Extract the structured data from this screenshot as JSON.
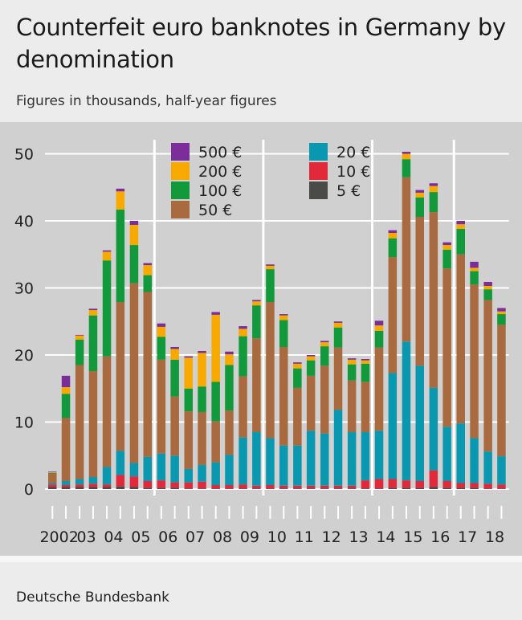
{
  "title": "Counterfeit euro banknotes in Germany by denomination",
  "subtitle": "Figures in thousands, half-year figures",
  "source": "Deutsche Bundesbank",
  "chart_data": {
    "type": "bar",
    "stacked": true,
    "ylim": [
      0,
      52
    ],
    "yticks": [
      0,
      10,
      20,
      30,
      40,
      50
    ],
    "year_labels": [
      "2002",
      "03",
      "04",
      "05",
      "06",
      "07",
      "08",
      "09",
      "10",
      "11",
      "12",
      "13",
      "14",
      "15",
      "16",
      "17",
      "18"
    ],
    "categories": [
      "2002 H1",
      "2002 H2",
      "2003 H1",
      "2003 H2",
      "2004 H1",
      "2004 H2",
      "2005 H1",
      "2005 H2",
      "2006 H1",
      "2006 H2",
      "2007 H1",
      "2007 H2",
      "2008 H1",
      "2008 H2",
      "2009 H1",
      "2009 H2",
      "2010 H1",
      "2010 H2",
      "2011 H1",
      "2011 H2",
      "2012 H1",
      "2012 H2",
      "2013 H1",
      "2013 H2",
      "2014 H1",
      "2014 H2",
      "2015 H1",
      "2015 H2",
      "2016 H1",
      "2016 H2",
      "2017 H1",
      "2017 H2",
      "2018 H1",
      "2018 H2"
    ],
    "series": [
      {
        "name": "5 €",
        "color": "#4a4a48",
        "values": [
          0.3,
          0.3,
          0.3,
          0.3,
          0.3,
          0.4,
          0.3,
          0.2,
          0.2,
          0.2,
          0.1,
          0.1,
          0.1,
          0.1,
          0.1,
          0.1,
          0.1,
          0.1,
          0.1,
          0.1,
          0.1,
          0.1,
          0.1,
          0.1,
          0.1,
          0.2,
          0.2,
          0.2,
          0.3,
          0.2,
          0.2,
          0.2,
          0.1,
          0.1
        ]
      },
      {
        "name": "10 €",
        "color": "#e2293b",
        "values": [
          0.4,
          0.3,
          0.4,
          0.5,
          0.4,
          1.7,
          1.6,
          1.0,
          1.1,
          0.8,
          0.9,
          1.0,
          0.5,
          0.5,
          0.6,
          0.4,
          0.5,
          0.4,
          0.4,
          0.4,
          0.4,
          0.4,
          0.4,
          1.2,
          1.4,
          1.3,
          1.1,
          1.0,
          2.5,
          1.0,
          0.7,
          0.7,
          0.7,
          0.6
        ]
      },
      {
        "name": "20 €",
        "color": "#0a98b0",
        "values": [
          0.2,
          0.6,
          0.8,
          1.0,
          2.6,
          3.6,
          2.0,
          3.6,
          4.0,
          4.0,
          2.0,
          2.5,
          3.4,
          4.5,
          7.0,
          8.0,
          7.0,
          6.0,
          6.0,
          8.2,
          7.8,
          11.3,
          8.0,
          7.2,
          7.2,
          15.8,
          20.7,
          17.2,
          12.3,
          8.1,
          8.9,
          6.7,
          4.8,
          4.2
        ]
      },
      {
        "name": "50 €",
        "color": "#a86a3e",
        "values": [
          1.4,
          9.4,
          17.0,
          15.8,
          16.5,
          22.2,
          26.8,
          24.6,
          14.0,
          8.8,
          8.6,
          7.9,
          6.1,
          6.6,
          9.1,
          14.0,
          20.3,
          14.7,
          8.6,
          8.2,
          10.1,
          9.3,
          7.7,
          7.5,
          12.4,
          17.3,
          24.5,
          22.2,
          26.2,
          23.6,
          25.2,
          22.9,
          22.6,
          19.6
        ]
      },
      {
        "name": "100 €",
        "color": "#12993b",
        "values": [
          0.1,
          3.6,
          3.8,
          8.3,
          14.3,
          13.8,
          5.7,
          2.5,
          3.4,
          5.5,
          3.4,
          3.8,
          5.9,
          6.8,
          6.0,
          4.9,
          4.9,
          4.0,
          2.9,
          2.3,
          2.9,
          3.0,
          2.4,
          2.7,
          2.5,
          2.8,
          2.7,
          2.9,
          3.0,
          2.8,
          3.8,
          2.0,
          1.6,
          1.6
        ]
      },
      {
        "name": "200 €",
        "color": "#f8a900",
        "values": [
          0.1,
          1.0,
          0.6,
          0.8,
          1.3,
          2.7,
          3.0,
          1.5,
          1.5,
          1.6,
          4.6,
          5.0,
          10.0,
          1.6,
          1.1,
          0.6,
          0.5,
          0.7,
          0.7,
          0.6,
          0.6,
          0.7,
          0.7,
          0.5,
          0.8,
          0.8,
          0.8,
          0.7,
          0.9,
          0.7,
          0.7,
          0.5,
          0.5,
          0.4
        ]
      },
      {
        "name": "500 €",
        "color": "#7b2d9a",
        "values": [
          0.1,
          1.7,
          0.1,
          0.2,
          0.2,
          0.4,
          0.6,
          0.3,
          0.5,
          0.3,
          0.2,
          0.3,
          0.4,
          0.4,
          0.4,
          0.2,
          0.2,
          0.2,
          0.2,
          0.2,
          0.2,
          0.2,
          0.2,
          0.2,
          0.7,
          0.4,
          0.3,
          0.4,
          0.4,
          0.4,
          0.5,
          0.9,
          0.6,
          0.5
        ]
      }
    ],
    "legend_columns": [
      [
        "500 €",
        "200 €",
        "100 €",
        "50 €"
      ],
      [
        "20 €",
        "10 €",
        "5 €"
      ]
    ]
  }
}
